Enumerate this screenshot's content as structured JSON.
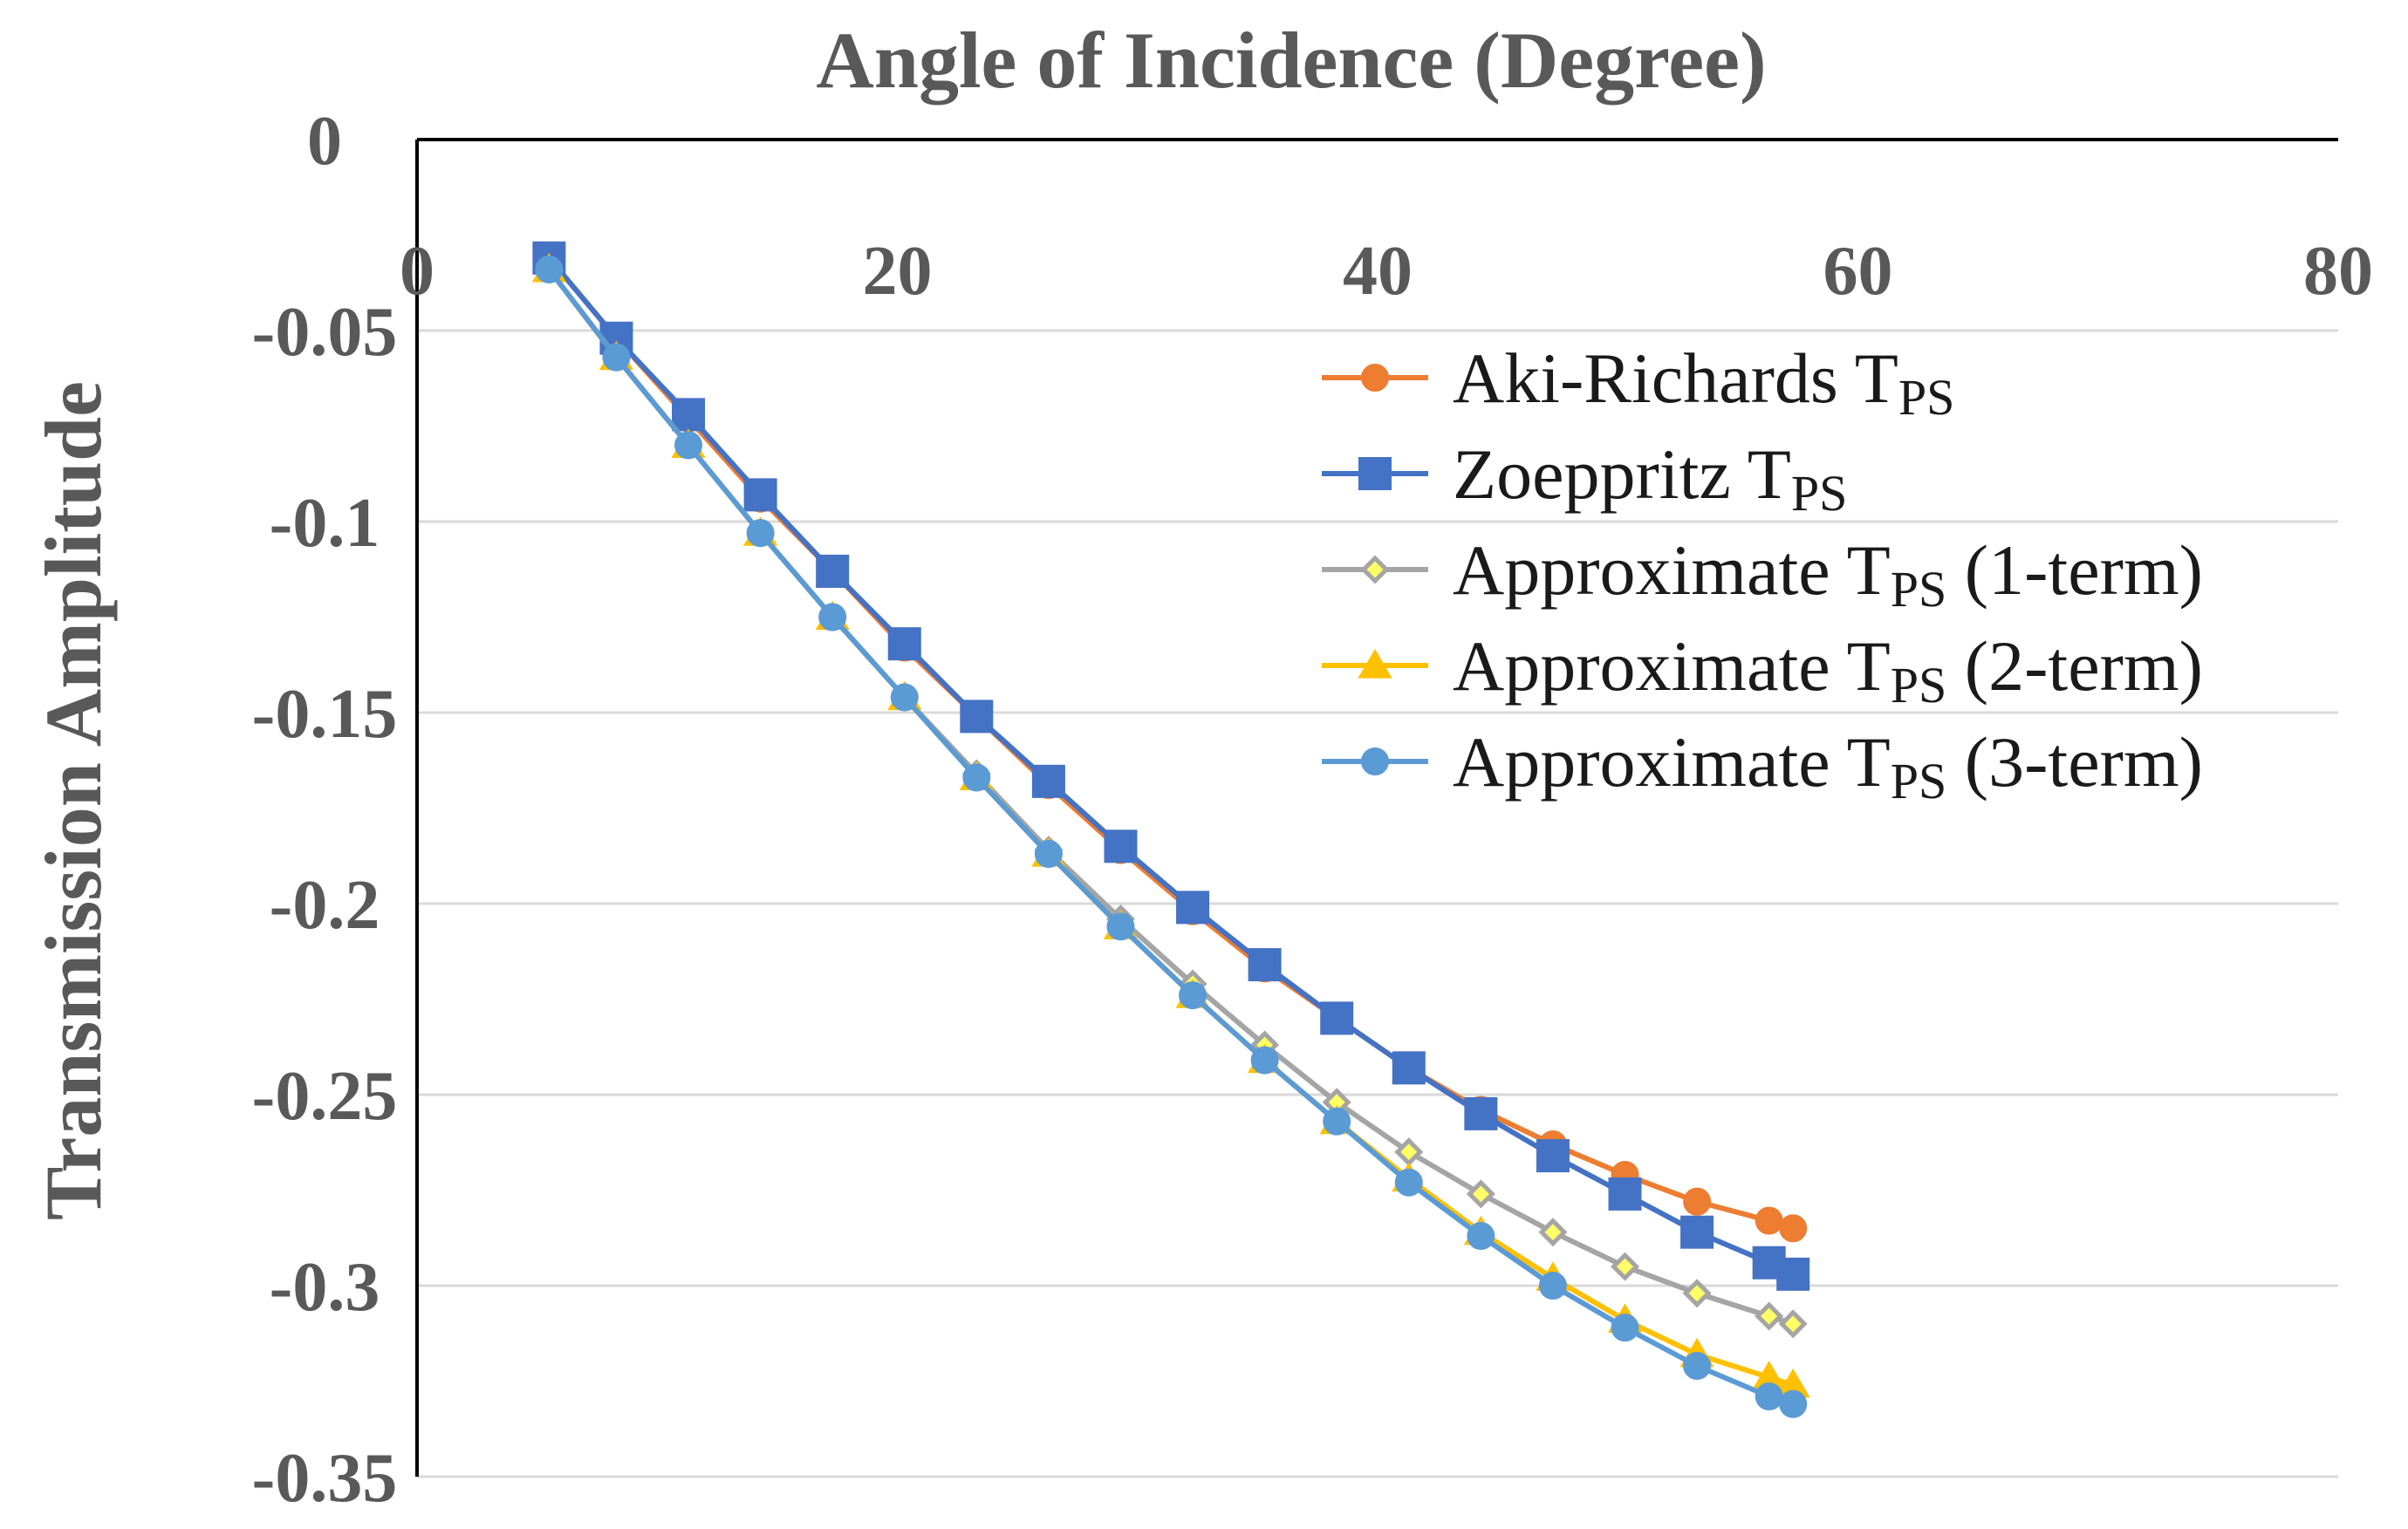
{
  "chart_data": {
    "type": "line",
    "title": "Angle of Incidence (Degree)",
    "xlabel": "Angle of Incidence (Degree)",
    "ylabel": "Transmission Amplitude",
    "xlim": [
      0,
      80
    ],
    "ylim": [
      -0.35,
      0
    ],
    "xticks": [
      0,
      20,
      40,
      60,
      80
    ],
    "xtick_labels": [
      "0",
      "20",
      "40",
      "60",
      "80"
    ],
    "yticks": [
      0,
      -0.05,
      -0.1,
      -0.15,
      -0.2,
      -0.25,
      -0.3,
      -0.35
    ],
    "ytick_labels": [
      "0",
      "-0.05",
      "-0.1",
      "-0.15",
      "-0.2",
      "-0.25",
      "-0.3",
      "-0.35"
    ],
    "grid": "horizontal",
    "x_axis_position": "top",
    "legend_position": "right",
    "series": [
      {
        "name": "Aki-Richards T",
        "subscript": "PS",
        "suffix": "",
        "color": "#ED7D31",
        "marker": "circle",
        "x": [
          5.5,
          8.3,
          11.3,
          14.3,
          17.3,
          20.3,
          23.3,
          26.3,
          29.3,
          32.3,
          35.3,
          38.3,
          41.3,
          44.3,
          47.3,
          50.3,
          53.3,
          56.3,
          57.3
        ],
        "y": [
          -0.031,
          -0.052,
          -0.073,
          -0.094,
          -0.113,
          -0.133,
          -0.151,
          -0.169,
          -0.186,
          -0.202,
          -0.217,
          -0.23,
          -0.243,
          -0.254,
          -0.263,
          -0.271,
          -0.278,
          -0.283,
          -0.285
        ]
      },
      {
        "name": "Zoeppritz T",
        "subscript": "PS",
        "suffix": "",
        "color": "#4472C4",
        "marker": "square",
        "x": [
          5.5,
          8.3,
          11.3,
          14.3,
          17.3,
          20.3,
          23.3,
          26.3,
          29.3,
          32.3,
          35.3,
          38.3,
          41.3,
          44.3,
          47.3,
          50.3,
          53.3,
          56.3,
          57.3
        ],
        "y": [
          -0.031,
          -0.052,
          -0.072,
          -0.093,
          -0.113,
          -0.132,
          -0.151,
          -0.168,
          -0.185,
          -0.201,
          -0.216,
          -0.23,
          -0.243,
          -0.255,
          -0.266,
          -0.276,
          -0.286,
          -0.294,
          -0.297
        ]
      },
      {
        "name": "Approximate T",
        "subscript": "PS",
        "suffix": "(1-term)",
        "color": "#A5A5A5",
        "marker": "diamond",
        "marker_fill": "#FFFF66",
        "x": [
          5.5,
          8.3,
          11.3,
          14.3,
          17.3,
          20.3,
          23.3,
          26.3,
          29.3,
          32.3,
          35.3,
          38.3,
          41.3,
          44.3,
          47.3,
          50.3,
          53.3,
          56.3,
          57.3
        ],
        "y": [
          -0.034,
          -0.057,
          -0.08,
          -0.103,
          -0.125,
          -0.146,
          -0.166,
          -0.186,
          -0.204,
          -0.221,
          -0.237,
          -0.252,
          -0.265,
          -0.276,
          -0.286,
          -0.295,
          -0.302,
          -0.308,
          -0.31
        ]
      },
      {
        "name": "Approximate T",
        "subscript": "PS",
        "suffix": "(2-term)",
        "color": "#FFC000",
        "marker": "triangle",
        "x": [
          5.5,
          8.3,
          11.3,
          14.3,
          17.3,
          20.3,
          23.3,
          26.3,
          29.3,
          32.3,
          35.3,
          38.3,
          41.3,
          44.3,
          47.3,
          50.3,
          53.3,
          56.3,
          57.3
        ],
        "y": [
          -0.034,
          -0.057,
          -0.08,
          -0.103,
          -0.125,
          -0.146,
          -0.167,
          -0.187,
          -0.206,
          -0.224,
          -0.241,
          -0.257,
          -0.272,
          -0.286,
          -0.298,
          -0.309,
          -0.318,
          -0.324,
          -0.326
        ]
      },
      {
        "name": "Approximate T",
        "subscript": "PS",
        "suffix": "(3-term)",
        "color": "#5B9BD5",
        "marker": "circle",
        "x": [
          5.5,
          8.3,
          11.3,
          14.3,
          17.3,
          20.3,
          23.3,
          26.3,
          29.3,
          32.3,
          35.3,
          38.3,
          41.3,
          44.3,
          47.3,
          50.3,
          53.3,
          56.3,
          57.3
        ],
        "y": [
          -0.034,
          -0.057,
          -0.08,
          -0.103,
          -0.125,
          -0.146,
          -0.167,
          -0.187,
          -0.206,
          -0.224,
          -0.241,
          -0.257,
          -0.273,
          -0.287,
          -0.3,
          -0.311,
          -0.321,
          -0.329,
          -0.331
        ]
      }
    ]
  }
}
